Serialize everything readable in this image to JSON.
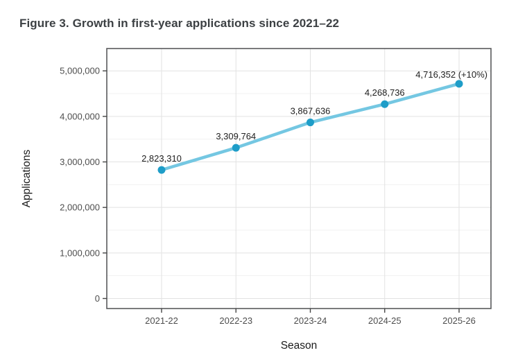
{
  "title": "Figure 3. Growth in first-year applications since 2021–22",
  "chart_data": {
    "type": "line",
    "title": "Figure 3. Growth in first-year applications since 2021–22",
    "xlabel": "Season",
    "ylabel": "Applications",
    "categories": [
      "2021-22",
      "2022-23",
      "2023-24",
      "2024-25",
      "2025-26"
    ],
    "series": [
      {
        "name": "Applications",
        "values": [
          2823310,
          3309764,
          3867636,
          4268736,
          4716352
        ]
      }
    ],
    "point_labels": [
      "2,823,310",
      "3,309,764",
      "3,867,636",
      "4,268,736",
      "4,716,352 (+10%)"
    ],
    "ylim": [
      0,
      5490000
    ],
    "yticks": [
      0,
      1000000,
      2000000,
      3000000,
      4000000,
      5000000
    ],
    "ytick_labels": [
      "0",
      "1,000,000",
      "2,000,000",
      "3,000,000",
      "4,000,000",
      "5,000,000"
    ],
    "y_minor_step": 500000,
    "grid": "horizontal major+minor, vertical major only",
    "legend_position": "none",
    "colors": {
      "line": "#74c7e2",
      "point": "#1e9dc8",
      "grid_major": "#e2e2e2",
      "grid_minor": "#f1f1f1",
      "panel_border": "#595a5c",
      "tick_mark": "#454545",
      "tick_text": "#4d4d4d",
      "axis_title_text": "#1a1a1a",
      "data_label_text": "#212121",
      "figure_title_text": "#3c4043",
      "panel_background": "#ffffff"
    }
  }
}
